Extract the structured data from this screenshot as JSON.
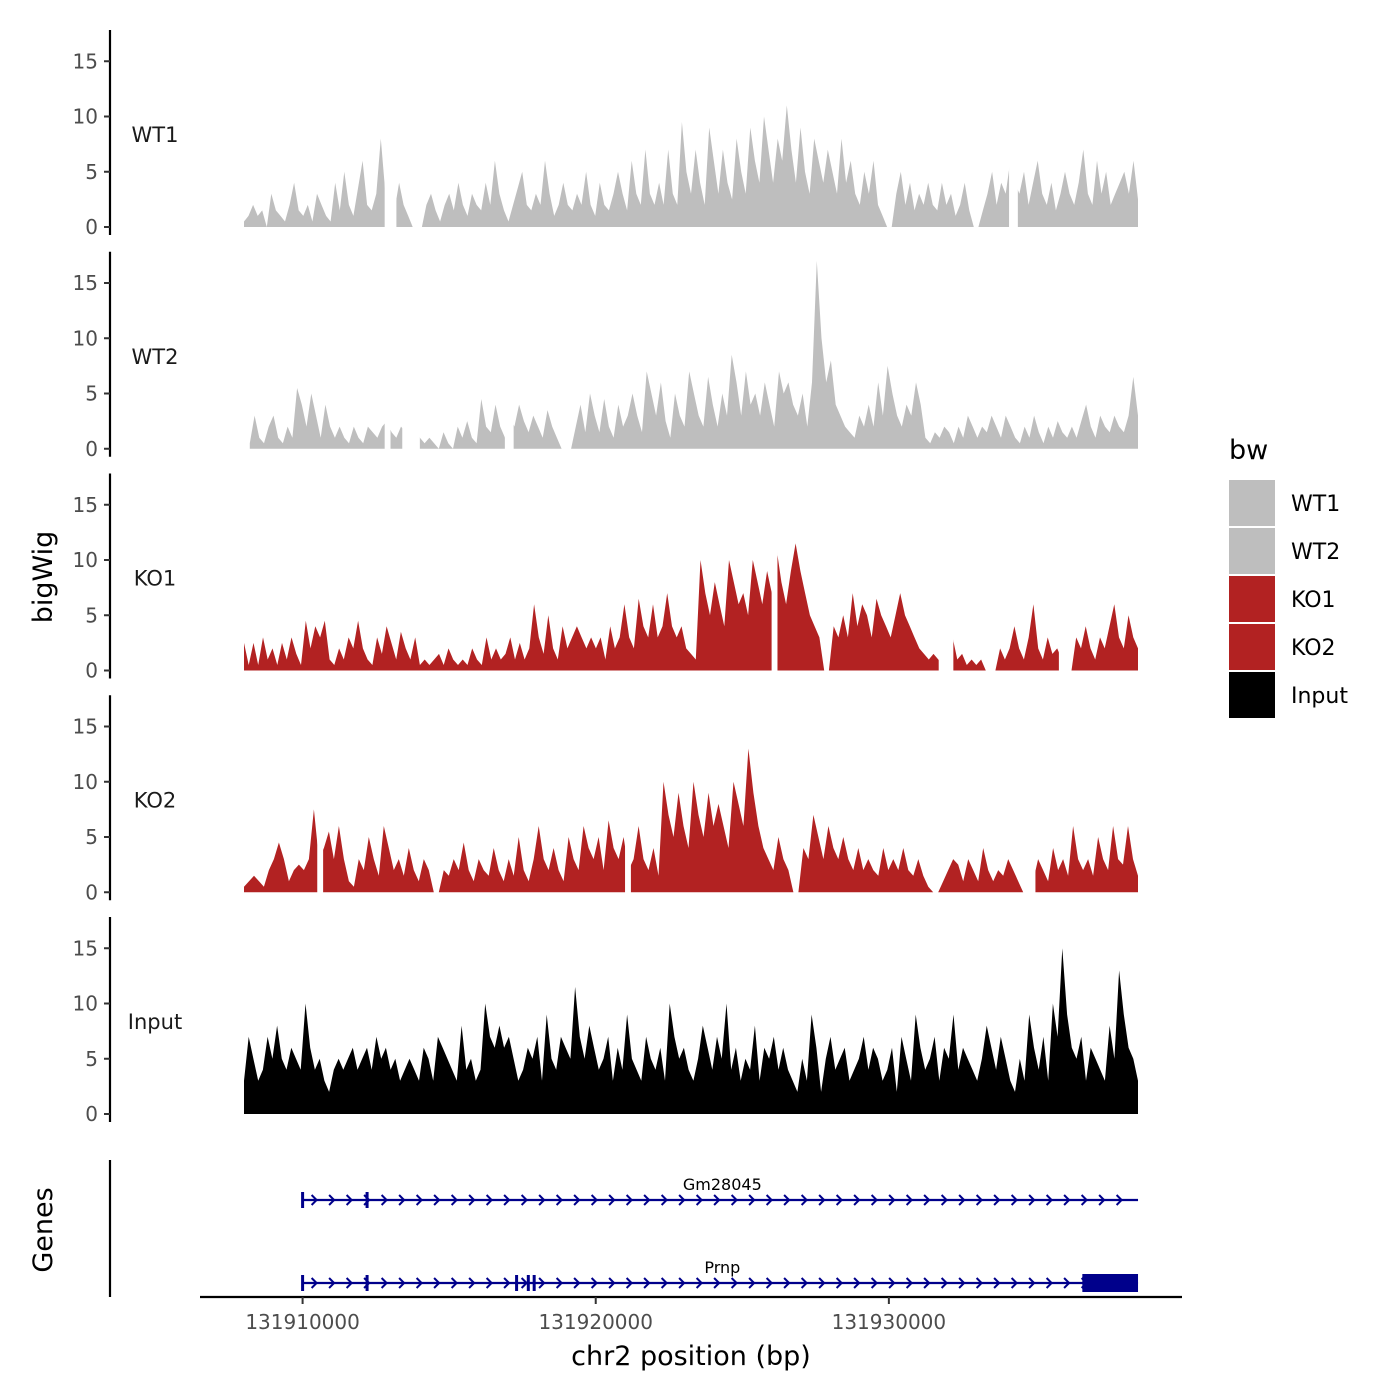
{
  "chart_data": {
    "type": "area",
    "title": "",
    "xlabel": "chr2 position (bp)",
    "ylabel": "bigWig",
    "genes_label": "Genes",
    "xlim": [
      131906500,
      131940000
    ],
    "ylim": [
      0,
      18
    ],
    "x_ticks": [
      131910000,
      131920000,
      131930000
    ],
    "x_tick_labels": [
      "131910000",
      "131920000",
      "131930000"
    ],
    "y_ticks": [
      0,
      5,
      10,
      15
    ],
    "y_tick_labels": [
      "0",
      "5",
      "10",
      "15"
    ],
    "legend": {
      "title": "bw",
      "position": "right",
      "entries": [
        {
          "label": "WT1",
          "color": "#bebebe"
        },
        {
          "label": "WT2",
          "color": "#bebebe"
        },
        {
          "label": "KO1",
          "color": "#b22222"
        },
        {
          "label": "KO2",
          "color": "#b22222"
        },
        {
          "label": "Input",
          "color": "#000000"
        }
      ]
    },
    "series": [
      {
        "name": "WT1",
        "color": "#bebebe",
        "x_start": 131908000,
        "x_end": 131938500,
        "gaps": [
          [
            131912800,
            131913200
          ],
          [
            131934100,
            131934400
          ]
        ],
        "values": [
          0.5,
          1,
          2,
          1,
          1.5,
          0,
          3,
          1.5,
          1,
          0.5,
          2,
          4,
          1.5,
          1,
          2,
          0.5,
          3,
          2,
          1,
          0.5,
          4,
          1.5,
          5,
          2,
          1,
          3.5,
          6,
          2,
          1.5,
          3,
          8,
          3,
          2,
          1.5,
          4,
          2,
          1,
          0,
          0,
          0,
          2,
          3,
          1.5,
          0.5,
          2,
          3,
          1.5,
          4,
          2,
          1,
          3,
          2,
          1.5,
          4,
          2,
          6,
          3,
          1.5,
          0.5,
          2,
          3.5,
          5,
          2,
          1.5,
          3,
          2,
          6,
          3,
          1,
          2,
          4,
          2,
          1.5,
          3,
          2,
          5,
          2,
          1,
          4,
          2,
          1.5,
          3,
          5,
          3,
          1.5,
          6,
          3,
          2,
          7,
          3,
          2,
          4,
          2,
          7,
          3,
          2,
          9.5,
          5,
          3,
          7,
          4,
          2,
          9,
          6,
          3,
          7,
          4,
          2.5,
          8,
          5,
          3,
          9,
          6,
          4,
          10,
          7,
          4,
          8,
          6,
          11,
          7,
          4,
          9,
          5,
          3,
          8,
          6,
          4,
          7,
          5,
          3,
          8,
          4,
          6,
          3,
          2,
          5,
          3,
          6,
          2,
          1,
          0,
          0,
          3,
          5,
          2,
          4,
          1.5,
          3,
          2,
          4,
          2,
          1.5,
          4,
          2,
          3,
          1,
          2,
          4,
          1.5,
          0,
          0,
          1.5,
          3,
          5,
          2,
          4,
          3,
          6,
          4,
          3,
          5,
          2,
          4,
          6,
          3,
          2,
          4,
          1.5,
          3,
          5,
          3,
          2,
          4,
          7,
          3,
          2,
          6,
          3,
          5,
          2,
          3,
          4,
          5,
          3,
          6,
          2.5
        ]
      },
      {
        "name": "WT2",
        "color": "#bebebe",
        "x_start": 131908200,
        "x_end": 131938500,
        "gaps": [
          [
            131912800,
            131913000
          ],
          [
            131913400,
            131914000
          ],
          [
            131916900,
            131917200
          ]
        ],
        "values": [
          0.5,
          3,
          1,
          0.5,
          2,
          3,
          1,
          0.5,
          2,
          1,
          5.5,
          4,
          2,
          5,
          3,
          1,
          4,
          2,
          1,
          2,
          1,
          0.5,
          2,
          1,
          0.5,
          2,
          1.5,
          1,
          2,
          2.5,
          1.5,
          1,
          2,
          1.5,
          3,
          2,
          1,
          0.5,
          1,
          0.5,
          0,
          1.5,
          0.5,
          0,
          2,
          1,
          2.5,
          1,
          0.5,
          4.5,
          2,
          1.5,
          4,
          2,
          1,
          3,
          2,
          4,
          2.5,
          1.5,
          3,
          2,
          1,
          3.5,
          2,
          1,
          0,
          0,
          0,
          2,
          4,
          1.5,
          5,
          3,
          1.5,
          4.5,
          2,
          1,
          4,
          2,
          3,
          5,
          3,
          1.5,
          7,
          5,
          3,
          6,
          2.5,
          1,
          5,
          3,
          2,
          7,
          5,
          3,
          2,
          6.5,
          4,
          2,
          5,
          3,
          8.5,
          6,
          3,
          7,
          4,
          5,
          3,
          6,
          4,
          2,
          7,
          5,
          6,
          4,
          3,
          5,
          2,
          6,
          17,
          10,
          6,
          8,
          4,
          3,
          2,
          1.5,
          1,
          3,
          2,
          4,
          2,
          6,
          3,
          7.5,
          5,
          3,
          2,
          4,
          3,
          6,
          4,
          1,
          0.5,
          1.5,
          1,
          2,
          1.5,
          0.5,
          2,
          1,
          3,
          2,
          1,
          2,
          1.5,
          3,
          2,
          1,
          3,
          2,
          1,
          0.5,
          2,
          1,
          3,
          1.5,
          0.5,
          2,
          1,
          2.5,
          1.5,
          1,
          2,
          1,
          2.5,
          4,
          2,
          1,
          3,
          2,
          1.5,
          3,
          2,
          1.5,
          3,
          6.5,
          3
        ]
      },
      {
        "name": "KO1",
        "color": "#b22222",
        "x_start": 131908000,
        "x_end": 131938500,
        "gaps": [
          [
            131926000,
            131926200
          ],
          [
            131931700,
            131932200
          ],
          [
            131935800,
            131936100
          ]
        ],
        "values": [
          2.5,
          0.5,
          2.5,
          0.5,
          3,
          1,
          2,
          0.5,
          2.5,
          1,
          3,
          1.5,
          0.5,
          4.5,
          2,
          4,
          3,
          4.5,
          1,
          0.5,
          2,
          1,
          3,
          2,
          4.5,
          2,
          1,
          0.5,
          3,
          1.5,
          4,
          2.5,
          1,
          3.5,
          2,
          1,
          3,
          0.5,
          1,
          0.5,
          1,
          1.5,
          0.5,
          2,
          1,
          0.5,
          1,
          0.5,
          2,
          1,
          0.5,
          3,
          1,
          2,
          1,
          1.5,
          3,
          1,
          2.5,
          1,
          2,
          6,
          3,
          1.5,
          5,
          2,
          1,
          4,
          2,
          3,
          4,
          3,
          2,
          3,
          2,
          3,
          1,
          4,
          2,
          3,
          6,
          3,
          2,
          6.5,
          4,
          3,
          6,
          3,
          4,
          7,
          4,
          3,
          4,
          2,
          1.5,
          1,
          10,
          7,
          5,
          8,
          6,
          4,
          10,
          8,
          6,
          7,
          5,
          10,
          8,
          6,
          9,
          7,
          11,
          8,
          6,
          9,
          11.5,
          9,
          7,
          5,
          4,
          3,
          0,
          0,
          4,
          3,
          5,
          3,
          7,
          4,
          6,
          5,
          3,
          6.5,
          5,
          4,
          3,
          5,
          7,
          5,
          4,
          3,
          2,
          1.5,
          1,
          1.5,
          1,
          0.5,
          5,
          3,
          1,
          1.5,
          0.5,
          1,
          0.5,
          1,
          0,
          0,
          0,
          2,
          1,
          2,
          4,
          2,
          1,
          3,
          6,
          2,
          1,
          3,
          1.5,
          2,
          1,
          0,
          0,
          3,
          2,
          4,
          2,
          1,
          3,
          2,
          4,
          6,
          3,
          2,
          5,
          3,
          2
        ]
      },
      {
        "name": "KO2",
        "color": "#b22222",
        "x_start": 131908000,
        "x_end": 131938500,
        "gaps": [
          [
            131910500,
            131910700
          ],
          [
            131921000,
            131921200
          ],
          [
            131934700,
            131935000
          ]
        ],
        "values": [
          0.5,
          1,
          1.5,
          1,
          0.5,
          2,
          3,
          4.5,
          3,
          1,
          2,
          2.5,
          2,
          3,
          7.5,
          3,
          4,
          5.5,
          3,
          6,
          3,
          1,
          0.5,
          3,
          2,
          5,
          3,
          1.5,
          6,
          4,
          2,
          3,
          1.5,
          4,
          2,
          1,
          3,
          2,
          0,
          0,
          2,
          1.5,
          3,
          2,
          4.5,
          2,
          1,
          3,
          2,
          1.5,
          4,
          2,
          1,
          3,
          1.5,
          5,
          2,
          1,
          3,
          6,
          3,
          2,
          4,
          2,
          1,
          5,
          3,
          2,
          6,
          4,
          3,
          5,
          2,
          6.5,
          4,
          3,
          5,
          2,
          3,
          6,
          3,
          2,
          4,
          1.5,
          10,
          7,
          5,
          9,
          6,
          4,
          10,
          7,
          5,
          9,
          6,
          8,
          6,
          4,
          10,
          8,
          6,
          13,
          9,
          6,
          4,
          3,
          2,
          5,
          3,
          2,
          0,
          0,
          4,
          3,
          7,
          5,
          3,
          6,
          4,
          3,
          5,
          3,
          2,
          4,
          2,
          3,
          2,
          1.5,
          4,
          2,
          3,
          2,
          4,
          2,
          1.5,
          3,
          1.5,
          0.5,
          0,
          0,
          1,
          2,
          3,
          2.5,
          1,
          3,
          2,
          1,
          4,
          2,
          1,
          2,
          1.5,
          3,
          2,
          1,
          0,
          0,
          1,
          3,
          2,
          1,
          4,
          2,
          3,
          1.5,
          6,
          3,
          2,
          3,
          1.5,
          5,
          3,
          2,
          6,
          3,
          2.5,
          6,
          3,
          1.5
        ]
      },
      {
        "name": "Input",
        "color": "#000000",
        "x_start": 131908000,
        "x_end": 131938500,
        "gaps": [],
        "values": [
          3,
          7,
          5,
          3,
          4,
          7,
          5,
          8,
          5,
          4,
          6,
          5,
          4,
          10,
          6,
          4,
          5,
          3,
          2,
          4,
          5,
          4,
          5,
          6,
          4,
          5,
          6,
          4,
          7,
          5,
          6,
          4,
          5,
          3,
          4,
          5,
          4,
          3,
          6,
          5,
          3,
          7,
          6,
          5,
          4,
          3,
          8,
          4,
          5,
          3,
          4,
          10,
          7,
          6,
          8,
          6,
          7,
          5,
          3,
          4,
          6,
          5,
          7,
          3,
          9,
          5,
          4,
          7,
          6,
          5,
          11.5,
          7,
          5,
          8,
          6,
          4,
          5,
          7,
          3,
          6,
          4,
          9,
          5,
          4,
          3,
          7,
          5,
          4,
          6,
          3,
          10,
          7,
          5,
          6,
          4,
          3,
          5,
          8,
          6,
          4,
          7,
          5,
          10,
          4,
          6,
          3,
          5,
          4,
          8,
          3,
          6,
          5,
          7,
          4,
          6,
          4,
          3,
          2,
          5,
          3,
          9,
          6,
          2,
          5,
          7,
          4,
          5,
          6,
          3,
          4,
          5,
          7,
          4,
          6,
          5,
          3,
          4,
          6,
          2,
          7,
          5,
          3,
          9,
          6,
          4,
          5,
          7,
          3,
          6,
          5,
          9,
          4,
          6,
          5,
          4,
          3,
          5,
          8,
          6,
          4,
          7,
          5,
          3,
          2,
          5,
          3,
          9,
          6,
          4,
          7,
          3,
          10,
          7,
          15,
          9,
          6,
          5,
          7,
          3,
          6,
          5,
          4,
          3,
          8,
          5,
          13,
          9,
          6,
          5,
          3
        ]
      }
    ],
    "genes": [
      {
        "name": "Gm28045",
        "color": "#00008b",
        "start": 131910000,
        "end": 131938500,
        "strand": "+",
        "exon_marks": [
          131910000,
          131912200
        ]
      },
      {
        "name": "Prnp",
        "color": "#00008b",
        "start": 131910000,
        "end": 131938500,
        "strand": "+",
        "exon_marks": [
          131910000,
          131912200,
          131917300,
          131917700,
          131917900
        ],
        "thick_block": [
          131936600,
          131938500
        ]
      }
    ]
  }
}
